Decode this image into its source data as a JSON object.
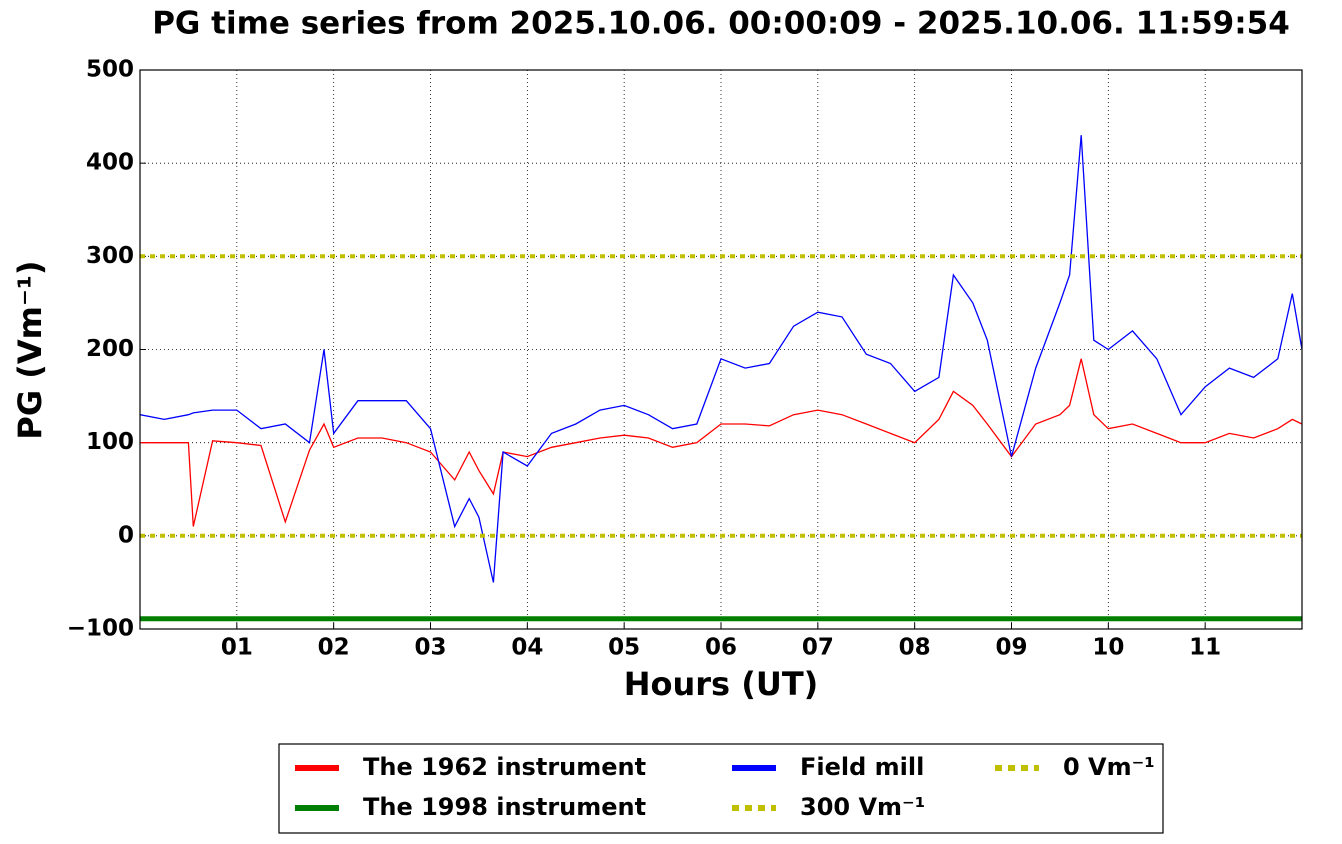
{
  "chart_data": {
    "type": "line",
    "title": "PG time series from 2025.10.06. 00:00:09 - 2025.10.06. 11:59:54",
    "xlabel": "Hours (UT)",
    "ylabel": "PG (Vm⁻¹)",
    "x": [
      0,
      0.25,
      0.5,
      0.55,
      0.75,
      1,
      1.25,
      1.5,
      1.75,
      1.9,
      2,
      2.25,
      2.5,
      2.75,
      3,
      3.25,
      3.4,
      3.5,
      3.65,
      3.75,
      4,
      4.25,
      4.5,
      4.75,
      5,
      5.25,
      5.5,
      5.75,
      6,
      6.25,
      6.5,
      6.75,
      7,
      7.25,
      7.5,
      7.75,
      8,
      8.25,
      8.4,
      8.6,
      8.75,
      9,
      9.25,
      9.5,
      9.6,
      9.72,
      9.85,
      10,
      10.25,
      10.5,
      10.75,
      11,
      11.25,
      11.5,
      11.75,
      11.9,
      12
    ],
    "series": [
      {
        "name": "The 1962 instrument",
        "color": "#ff0000",
        "linestyle": "solid",
        "values": [
          100,
          100,
          100,
          10,
          102,
          100,
          97,
          15,
          92,
          120,
          95,
          105,
          105,
          100,
          90,
          60,
          90,
          70,
          45,
          90,
          85,
          95,
          100,
          105,
          108,
          105,
          95,
          100,
          120,
          120,
          118,
          130,
          135,
          130,
          120,
          110,
          100,
          125,
          155,
          140,
          120,
          85,
          120,
          130,
          140,
          190,
          130,
          115,
          120,
          110,
          100,
          100,
          110,
          105,
          115,
          125,
          120
        ]
      },
      {
        "name": "The 1998 instrument",
        "color": "#008000",
        "linestyle": "solid",
        "x": [
          0,
          12
        ],
        "values": [
          -89,
          -89
        ]
      },
      {
        "name": "Field mill",
        "color": "#0000ff",
        "linestyle": "solid",
        "values": [
          130,
          125,
          130,
          132,
          135,
          135,
          115,
          120,
          100,
          200,
          110,
          145,
          145,
          145,
          115,
          10,
          40,
          20,
          -50,
          90,
          75,
          110,
          120,
          135,
          140,
          130,
          115,
          120,
          190,
          180,
          185,
          225,
          240,
          235,
          195,
          185,
          155,
          170,
          280,
          250,
          210,
          85,
          180,
          250,
          280,
          430,
          210,
          200,
          220,
          190,
          130,
          160,
          180,
          170,
          190,
          260,
          200
        ]
      },
      {
        "name": "300 Vm⁻¹",
        "color": "#bfbf00",
        "linestyle": "dotted",
        "x": [
          0,
          12
        ],
        "values": [
          300,
          300
        ]
      },
      {
        "name": "0 Vm⁻¹",
        "color": "#bfbf00",
        "linestyle": "dotted",
        "x": [
          0,
          12
        ],
        "values": [
          0,
          0
        ]
      }
    ],
    "xlim": [
      0,
      12
    ],
    "xticks": [
      {
        "value": 1,
        "label": "01"
      },
      {
        "value": 2,
        "label": "02"
      },
      {
        "value": 3,
        "label": "03"
      },
      {
        "value": 4,
        "label": "04"
      },
      {
        "value": 5,
        "label": "05"
      },
      {
        "value": 6,
        "label": "06"
      },
      {
        "value": 7,
        "label": "07"
      },
      {
        "value": 8,
        "label": "08"
      },
      {
        "value": 9,
        "label": "09"
      },
      {
        "value": 10,
        "label": "10"
      },
      {
        "value": 11,
        "label": "11"
      }
    ],
    "ylim": [
      -100,
      500
    ],
    "yticks": [
      {
        "value": -100,
        "label": "−100"
      },
      0,
      100,
      200,
      300,
      400,
      500
    ],
    "grid": true,
    "legend": "below"
  }
}
